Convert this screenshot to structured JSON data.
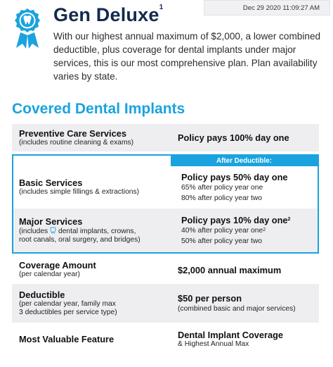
{
  "timestamp": "Dec 29 2020 11:09:27 AM",
  "header": {
    "title": "Gen Deluxe",
    "title_note": "1",
    "intro": "With our highest annual maximum of $2,000, a lower combined deductible, plus coverage for dental implants under major services, this is our most comprehensive plan. Plan availability varies by state."
  },
  "section_title": "Covered Dental Implants",
  "after_deductible_label": "After Deductible:",
  "rows": {
    "preventive": {
      "label": "Preventive Care Services",
      "sub": "(includes routine cleaning & exams)",
      "value": "Policy pays 100% day one"
    },
    "basic": {
      "label": "Basic Services",
      "sub": "(includes simple fillings & extractions)",
      "value": "Policy pays 50% day one",
      "lines": [
        "65% after policy year one",
        "80% after policy year two"
      ]
    },
    "major": {
      "label": "Major Services",
      "sub_prefix": "(includes",
      "sub_suffix": "dental implants, crowns,",
      "sub_line2": "root canals, oral surgery, and bridges)",
      "value": "Policy pays 10% day one",
      "value_note": "2",
      "line1": "40% after policy year one",
      "line1_note": "2",
      "line2": "50% after policy year two"
    },
    "coverage": {
      "label": "Coverage Amount",
      "sub": "(per calendar year)",
      "value": "$2,000 annual maximum"
    },
    "deductible": {
      "label": "Deductible",
      "sub_lines": [
        "(per calendar year, family max",
        "3 deductibles per service type)"
      ],
      "value": "$50 per person",
      "value_sub": "(combined basic and major services)"
    },
    "feature": {
      "label": "Most Valuable Feature",
      "value": "Dental Implant Coverage",
      "value_sub": "& Highest Annual Max"
    }
  },
  "colors": {
    "accent": "#1aa3de",
    "title": "#132a4e",
    "row_grey": "#eeeef0"
  },
  "icons": [
    "award-ribbon-tooth-icon",
    "tooth-icon"
  ]
}
